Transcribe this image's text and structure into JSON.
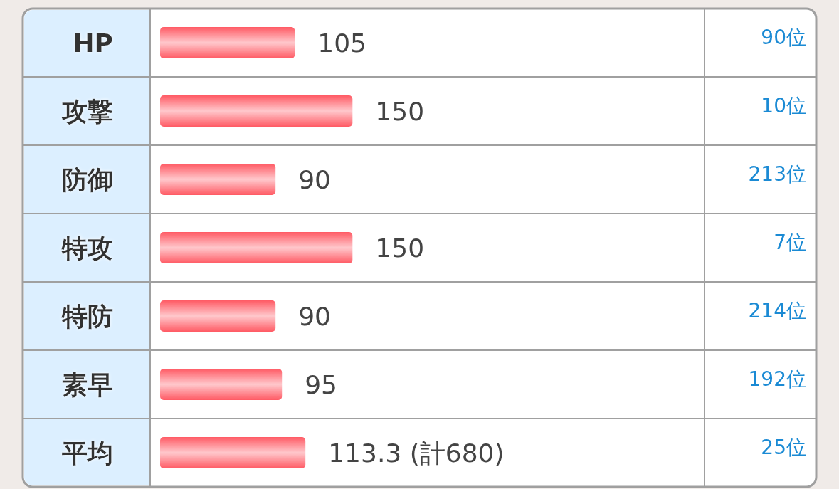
{
  "chart_data": {
    "type": "bar",
    "orientation": "horizontal",
    "categories": [
      "HP",
      "攻撃",
      "防御",
      "特攻",
      "特防",
      "素早",
      "平均"
    ],
    "values": [
      105,
      150,
      90,
      150,
      90,
      95,
      113.3
    ],
    "value_labels": [
      "105",
      "150",
      "90",
      "150",
      "90",
      "95",
      "113.3 (計680)"
    ],
    "color": "#ff5a64",
    "annotations": [
      "90位",
      "10位",
      "213位",
      "7位",
      "214位",
      "192位",
      "25位"
    ]
  }
}
